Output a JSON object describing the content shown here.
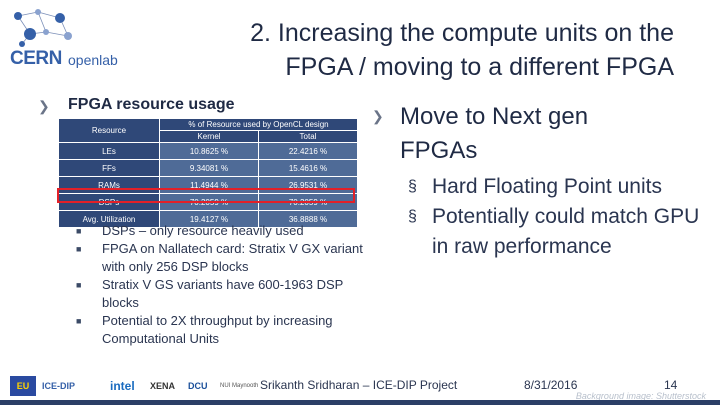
{
  "header": {
    "logo_text_cern": "CERN",
    "logo_text_openlab": "openlab",
    "title_line1": "2. Increasing the compute units on the",
    "title_line2": "FPGA / moving to a different FPGA"
  },
  "left": {
    "section_title": "FPGA resource usage",
    "table": {
      "group_header": "% of Resource used by OpenCL design",
      "col_resource": "Resource",
      "col_kernel": "Kernel",
      "col_total": "Total",
      "rows": [
        {
          "resource": "LEs",
          "kernel": "10.8625 %",
          "total": "22.4216 %"
        },
        {
          "resource": "FFs",
          "kernel": "9.34081 %",
          "total": "15.4616 %"
        },
        {
          "resource": "RAMs",
          "kernel": "11.4944 %",
          "total": "26.9531 %"
        },
        {
          "resource": "DSPs",
          "kernel": "70.2059 %",
          "total": "70.2059 %"
        },
        {
          "resource": "Avg. Utilization",
          "kernel": "19.4127 %",
          "total": "36.8888 %"
        }
      ]
    },
    "bullets": [
      "DSPs – only resource heavily used",
      "FPGA on Nallatech card: Stratix V GX variant with only 256 DSP blocks",
      "Stratix V GS variants have 600-1963 DSP blocks",
      "Potential to 2X throughput by increasing Computational Units"
    ]
  },
  "right": {
    "section_title_line1": "Move to Next gen",
    "section_title_line2": "FPGAs",
    "bullets": [
      "Hard Floating Point units",
      "Potentially could match GPU in raw performance"
    ]
  },
  "footer": {
    "author": "Srikanth Sridharan – ICE-DIP Project",
    "date": "8/31/2016",
    "page": "14",
    "bg_credit": "Background image: Shutterstock",
    "logos": [
      "EU",
      "ICE-DIP",
      "intel",
      "XENA",
      "DCU",
      "NUI Maynooth"
    ]
  },
  "colors": {
    "table_header": "#2f4878",
    "table_cell": "#4f6b97",
    "highlight": "#e32028",
    "title": "#1f2a44"
  }
}
